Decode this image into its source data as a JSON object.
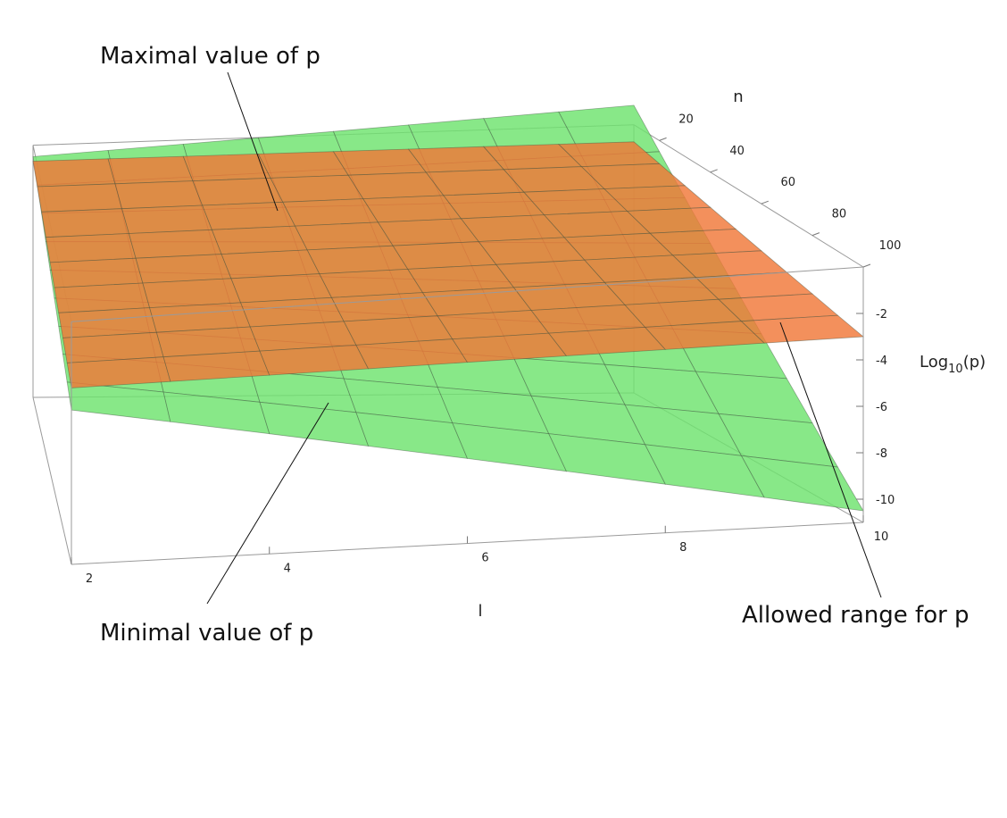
{
  "chart_data": {
    "type": "surface3d",
    "axes": {
      "x": {
        "label": "l",
        "range": [
          2,
          10
        ],
        "ticks": [
          "2",
          "4",
          "6",
          "8",
          "10"
        ]
      },
      "y": {
        "label": "n",
        "range": [
          10,
          100
        ],
        "ticks": [
          "20",
          "40",
          "60",
          "80",
          "100"
        ]
      },
      "z": {
        "label": "Log",
        "label_sub": "10",
        "label_tail": "(p)",
        "range": [
          -11,
          0
        ],
        "ticks": [
          "-2",
          "-4",
          "-6",
          "-8",
          "-10"
        ]
      }
    },
    "surfaces": [
      {
        "annotation": "Minimal value of p",
        "color": "#6ee36e",
        "corners": {
          "l2_n10": -0.5,
          "l10_n10": 0.8,
          "l2_n100": -4.0,
          "l10_n100": -10.5
        }
      },
      {
        "annotation": "Maximal value of p",
        "color": "#f07838",
        "corners": {
          "l2_n10": -0.7,
          "l10_n10": -0.7,
          "l2_n100": -3.0,
          "l10_n100": -3.0
        }
      }
    ],
    "region_annotation": "Allowed range for p",
    "box": true,
    "grid": true
  }
}
